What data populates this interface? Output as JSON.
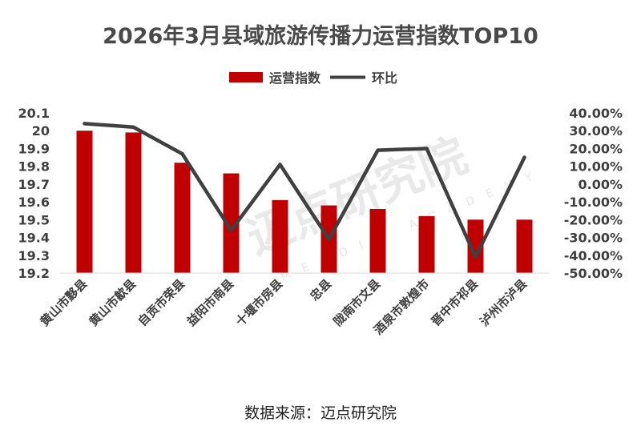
{
  "chart_data": {
    "type": "bar+line",
    "title": "2026年3月县域旅游传播力运营指数TOP10",
    "categories": [
      "黄山市黟县",
      "黄山市歙县",
      "自贡市荣县",
      "益阳市南县",
      "十堰市房县",
      "忠县",
      "陇南市文县",
      "酒泉市敦煌市",
      "晋中市祁县",
      "泸州市泸县"
    ],
    "series": [
      {
        "name": "运营指数",
        "type": "bar",
        "axis": "left",
        "color": "#c00000",
        "values": [
          20.0,
          19.99,
          19.82,
          19.76,
          19.61,
          19.58,
          19.56,
          19.52,
          19.5,
          19.5
        ]
      },
      {
        "name": "环比",
        "type": "line",
        "axis": "right",
        "color": "#404040",
        "values": [
          0.34,
          0.32,
          0.17,
          -0.26,
          0.11,
          -0.31,
          0.19,
          0.2,
          -0.41,
          0.15
        ]
      }
    ],
    "y_left": {
      "min": 19.2,
      "max": 20.1,
      "ticks": [
        "20.1",
        "20",
        "19.9",
        "19.8",
        "19.7",
        "19.6",
        "19.5",
        "19.4",
        "19.3",
        "19.2"
      ]
    },
    "y_right": {
      "min": -0.5,
      "max": 0.4,
      "ticks": [
        "40.00%",
        "30.00%",
        "20.00%",
        "10.00%",
        "0.00%",
        "-10.00%",
        "-20.00%",
        "-30.00%",
        "-40.00%",
        "-50.00%"
      ]
    },
    "legend": {
      "position": "top-center",
      "items": [
        "运营指数",
        "环比"
      ]
    },
    "grid": false
  },
  "source_note": "数据来源：迈点研究院",
  "watermark": {
    "text": "迈点研究院",
    "subtext": "MEADIN ACADEMY"
  }
}
